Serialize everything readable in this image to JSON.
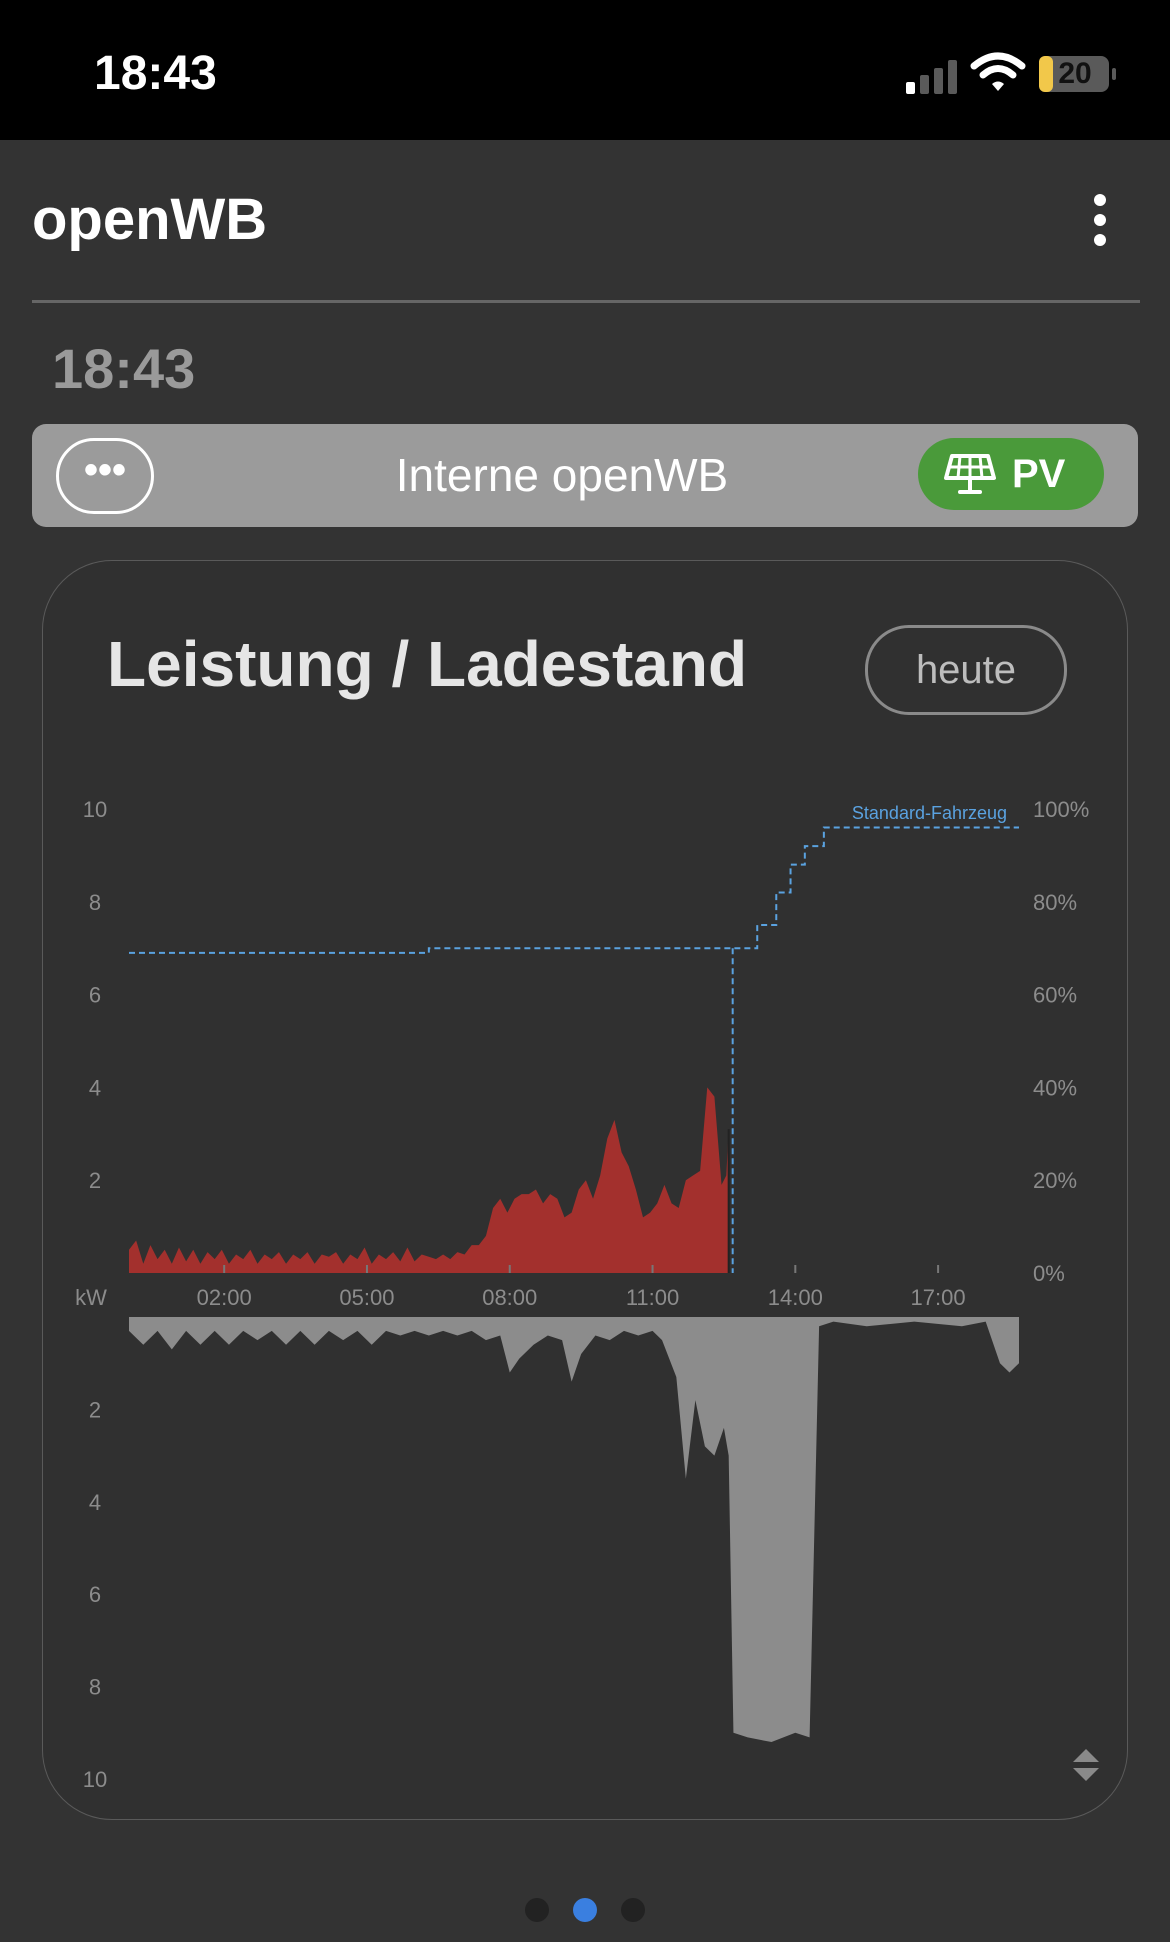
{
  "status_bar": {
    "time": "18:43",
    "battery": "20"
  },
  "header": {
    "title": "openWB"
  },
  "clock": "18:43",
  "chargepoint": {
    "name": "Interne openWB",
    "mode": "PV",
    "more_label": "•••"
  },
  "card": {
    "title": "Leistung / Ladestand",
    "period_button": "heute"
  },
  "pager": {
    "count": 3,
    "active": 1
  },
  "colors": {
    "background": "#333333",
    "charge_power": "#a3302d",
    "pv_yield": "#c8e29a",
    "grid_import": "#8c8c8c",
    "soc_line": "#5aa2e0",
    "pv_badge": "#4a9a3a",
    "pager_active": "#3a7fe0"
  },
  "chart_data": {
    "type": "area",
    "x_ticks": [
      "02:00",
      "05:00",
      "08:00",
      "11:00",
      "14:00",
      "17:00"
    ],
    "x_unit_label": "kW",
    "y_left_top_ticks": [
      "10",
      "8",
      "6",
      "4",
      "2"
    ],
    "y_left_bottom_ticks": [
      "2",
      "4",
      "6",
      "8",
      "10"
    ],
    "y_right_ticks": [
      "100%",
      "80%",
      "60%",
      "40%",
      "20%",
      "0%"
    ],
    "ylim_top": [
      0,
      10
    ],
    "ylim_bottom": [
      0,
      10
    ],
    "ylim_right": [
      0,
      100
    ],
    "xlim_hours": [
      0,
      18.7
    ],
    "series": [
      {
        "name": "Standard-Fahrzeug",
        "kind": "soc_step",
        "x": [
          0.0,
          6.3,
          6.3,
          12.6,
          12.65,
          13.2,
          13.2,
          13.6,
          13.6,
          13.9,
          13.9,
          14.2,
          14.2,
          14.6,
          14.6,
          18.7
        ],
        "y": [
          69,
          69,
          70,
          70,
          70,
          70,
          75,
          75,
          82,
          82,
          88,
          88,
          92,
          92,
          96,
          96
        ]
      },
      {
        "kind": "charge_power",
        "x": [
          0.0,
          0.15,
          0.3,
          0.45,
          0.6,
          0.75,
          0.9,
          1.05,
          1.2,
          1.35,
          1.5,
          1.65,
          1.8,
          1.95,
          2.1,
          2.25,
          2.4,
          2.55,
          2.7,
          2.85,
          3.0,
          3.15,
          3.3,
          3.45,
          3.6,
          3.75,
          3.9,
          4.05,
          4.2,
          4.35,
          4.5,
          4.65,
          4.8,
          4.95,
          5.1,
          5.25,
          5.4,
          5.55,
          5.7,
          5.85,
          6.0,
          6.15,
          6.3,
          6.45,
          6.6,
          6.75,
          6.9,
          7.05,
          7.2,
          7.35,
          7.5,
          7.65,
          7.8,
          7.95,
          8.1,
          8.25,
          8.4,
          8.55,
          8.7,
          8.85,
          9.0,
          9.15,
          9.3,
          9.45,
          9.6,
          9.75,
          9.9,
          10.05,
          10.2,
          10.35,
          10.5,
          10.65,
          10.8,
          10.95,
          11.1,
          11.25,
          11.4,
          11.55,
          11.7,
          11.85,
          12.0,
          12.15,
          12.3,
          12.45,
          12.55,
          12.6
        ],
        "y": [
          0.5,
          0.7,
          0.2,
          0.6,
          0.3,
          0.5,
          0.2,
          0.55,
          0.25,
          0.5,
          0.2,
          0.45,
          0.3,
          0.5,
          0.2,
          0.4,
          0.3,
          0.5,
          0.2,
          0.4,
          0.3,
          0.45,
          0.2,
          0.4,
          0.3,
          0.45,
          0.2,
          0.4,
          0.35,
          0.45,
          0.2,
          0.4,
          0.3,
          0.55,
          0.2,
          0.4,
          0.3,
          0.45,
          0.25,
          0.55,
          0.25,
          0.4,
          0.35,
          0.3,
          0.4,
          0.3,
          0.45,
          0.4,
          0.6,
          0.6,
          0.8,
          1.4,
          1.6,
          1.3,
          1.6,
          1.7,
          1.7,
          1.8,
          1.5,
          1.7,
          1.6,
          1.2,
          1.3,
          1.8,
          2.0,
          1.6,
          2.1,
          2.9,
          3.3,
          2.6,
          2.3,
          1.8,
          1.2,
          1.3,
          1.5,
          1.9,
          1.5,
          1.4,
          2.0,
          2.1,
          2.2,
          4.0,
          3.8,
          1.9,
          2.1,
          3.1
        ]
      },
      {
        "kind": "pv_yield",
        "x": [
          6.7,
          7.0,
          8.0,
          9.0,
          10.0,
          11.0,
          12.0,
          12.6
        ],
        "y": [
          0.0,
          0.2,
          0.3,
          0.25,
          0.2,
          0.15,
          0.1,
          0.05
        ]
      },
      {
        "kind": "grid_import",
        "x": [
          0.0,
          0.3,
          0.6,
          0.9,
          1.2,
          1.5,
          1.8,
          2.1,
          2.4,
          2.7,
          3.0,
          3.3,
          3.6,
          3.9,
          4.2,
          4.5,
          4.8,
          5.1,
          5.4,
          5.7,
          6.0,
          6.3,
          6.6,
          6.9,
          7.2,
          7.5,
          7.8,
          8.0,
          8.2,
          8.5,
          8.8,
          9.1,
          9.3,
          9.5,
          9.8,
          10.1,
          10.4,
          10.7,
          11.0,
          11.2,
          11.5,
          11.7,
          11.9,
          12.1,
          12.3,
          12.5,
          12.6,
          12.7,
          13.0,
          13.5,
          14.0,
          14.3,
          14.5,
          14.8,
          15.5,
          16.5,
          17.5,
          18.0,
          18.3,
          18.5,
          18.7
        ],
        "y": [
          0.3,
          0.6,
          0.3,
          0.7,
          0.3,
          0.6,
          0.3,
          0.6,
          0.3,
          0.5,
          0.3,
          0.6,
          0.3,
          0.6,
          0.3,
          0.5,
          0.3,
          0.6,
          0.3,
          0.4,
          0.3,
          0.4,
          0.3,
          0.4,
          0.3,
          0.5,
          0.4,
          1.2,
          0.9,
          0.6,
          0.4,
          0.5,
          1.4,
          0.8,
          0.4,
          0.5,
          0.3,
          0.4,
          0.3,
          0.5,
          1.3,
          3.5,
          1.8,
          2.8,
          3.0,
          2.4,
          3.0,
          9.0,
          9.1,
          9.2,
          9.0,
          9.1,
          0.2,
          0.1,
          0.2,
          0.1,
          0.2,
          0.1,
          1.0,
          1.2,
          1.0
        ]
      }
    ]
  }
}
